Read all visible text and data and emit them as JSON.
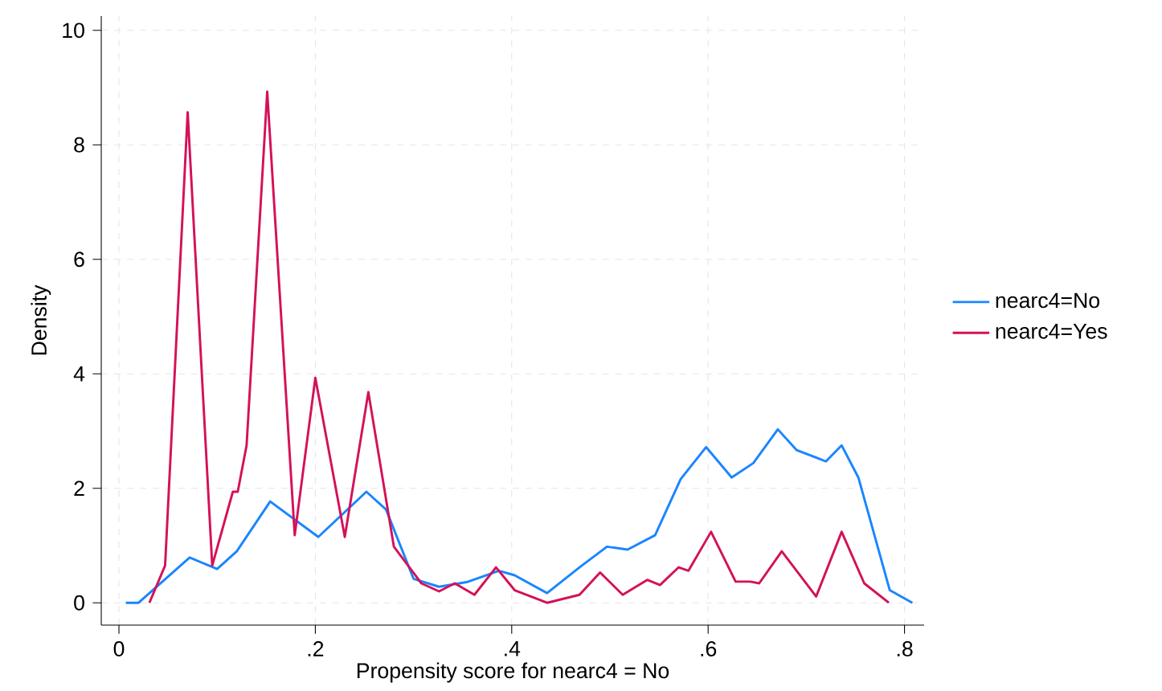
{
  "chart_data": {
    "type": "line",
    "xlabel": "Propensity score for nearc4 = No",
    "ylabel": "Density",
    "xlim": [
      -0.018,
      0.82
    ],
    "ylim": [
      -0.39,
      10.25
    ],
    "xticks": [
      0,
      {
        "value": 0.2,
        "label": ".2"
      },
      {
        "value": 0.4,
        "label": ".4"
      },
      {
        "value": 0.6,
        "label": ".6"
      },
      {
        "value": 0.8,
        "label": ".8"
      }
    ],
    "yticks": [
      0,
      2,
      4,
      6,
      8,
      10
    ],
    "grid": true,
    "legend": "right",
    "series": [
      {
        "name": "nearc4=No",
        "color": "#1a85ff",
        "x": [
          0.007,
          0.02,
          0.072,
          0.1,
          0.12,
          0.154,
          0.203,
          0.252,
          0.272,
          0.3,
          0.326,
          0.354,
          0.387,
          0.403,
          0.436,
          0.469,
          0.497,
          0.518,
          0.546,
          0.572,
          0.598,
          0.624,
          0.646,
          0.671,
          0.69,
          0.72,
          0.736,
          0.753,
          0.785,
          0.808
        ],
        "values": [
          0,
          0,
          0.79,
          0.59,
          0.9,
          1.77,
          1.15,
          1.94,
          1.63,
          0.42,
          0.28,
          0.36,
          0.56,
          0.48,
          0.17,
          0.62,
          0.98,
          0.93,
          1.18,
          2.16,
          2.72,
          2.19,
          2.44,
          3.03,
          2.67,
          2.47,
          2.75,
          2.19,
          0.22,
          0
        ]
      },
      {
        "name": "nearc4=Yes",
        "color": "#d41159",
        "x": [
          0.031,
          0.047,
          0.07,
          0.095,
          0.116,
          0.121,
          0.13,
          0.151,
          0.179,
          0.2,
          0.23,
          0.254,
          0.28,
          0.308,
          0.326,
          0.342,
          0.362,
          0.384,
          0.403,
          0.436,
          0.469,
          0.49,
          0.513,
          0.538,
          0.551,
          0.57,
          0.58,
          0.603,
          0.628,
          0.643,
          0.652,
          0.675,
          0.71,
          0.736,
          0.759,
          0.784
        ],
        "values": [
          0,
          0.65,
          8.57,
          0.65,
          1.94,
          1.94,
          2.75,
          8.93,
          1.18,
          3.93,
          1.15,
          3.68,
          0.98,
          0.34,
          0.2,
          0.34,
          0.14,
          0.62,
          0.22,
          0,
          0.14,
          0.53,
          0.14,
          0.4,
          0.31,
          0.62,
          0.56,
          1.24,
          0.37,
          0.37,
          0.34,
          0.9,
          0.11,
          1.24,
          0.34,
          0
        ]
      }
    ]
  }
}
